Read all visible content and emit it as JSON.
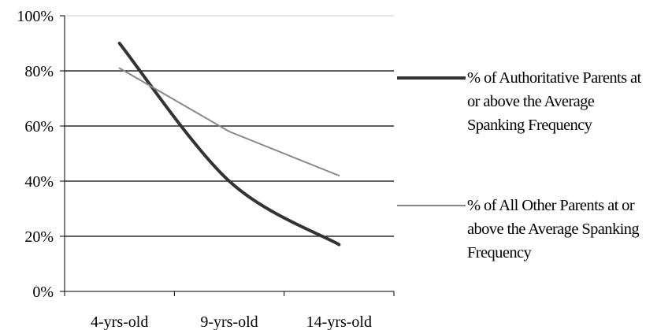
{
  "chart_data": {
    "type": "line",
    "categories": [
      "4-yrs-old",
      "9-yrs-old",
      "14-yrs-old"
    ],
    "y_ticks": [
      "0%",
      "20%",
      "40%",
      "60%",
      "80%",
      "100%"
    ],
    "ylim": [
      0,
      100
    ],
    "grid": true,
    "legend_position": "right",
    "series": [
      {
        "name": "% of Authoritative Parents at or above the Average Spanking Frequency",
        "values": [
          90,
          40,
          17
        ],
        "color": "#333333"
      },
      {
        "name": "% of All Other Parents at or above the Average Spanking Frequency",
        "values": [
          81,
          58,
          42
        ],
        "color": "#888888"
      }
    ]
  }
}
